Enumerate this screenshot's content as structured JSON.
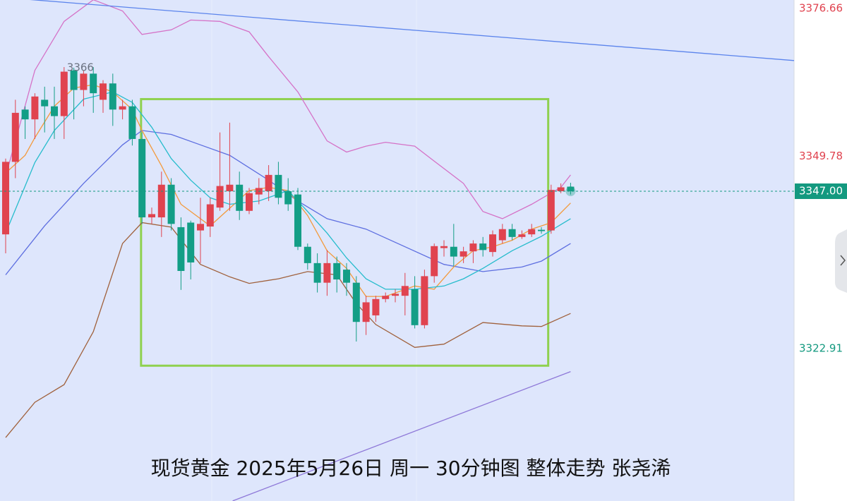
{
  "chart_data": {
    "type": "candlestick",
    "title": "现货黄金  2025年5月26日 周一 30分钟图 整体走势  张尧浠",
    "ylim": [
      3299.59,
      3376.27
    ],
    "xlim": [
      -0.58,
      80.94
    ],
    "up_color": "#e0434f",
    "down_color": "#139e86",
    "open": [
      3340.4,
      3351.5,
      3359.5,
      3358,
      3361,
      3360,
      3358.5,
      3365.5,
      3362.5,
      3365,
      3361,
      3363.5,
      3359.5,
      3360,
      3355,
      3343,
      3343,
      3348,
      3341.5,
      3342.2,
      3341,
      3341.6,
      3344.5,
      3347,
      3348,
      3344,
      3346.5,
      3347,
      3349.5,
      3347,
      3346.5,
      3338.5,
      3336,
      3333,
      3336,
      3335,
      3333,
      3327,
      3328,
      3330.5,
      3331,
      3331,
      3332,
      3326.5,
      3334,
      3338.3,
      3338.5,
      3337,
      3337.8,
      3339,
      3337.7,
      3339.5,
      3341.2,
      3340,
      3340.4,
      3341.1,
      3341,
      3347,
      3347.7
    ],
    "high": [
      3352,
      3361,
      3360,
      3362,
      3363,
      3363,
      3366,
      3365.91,
      3365.5,
      3366,
      3364,
      3365,
      3361,
      3361,
      3356,
      3344.5,
      3350,
      3349,
      3343,
      3342.5,
      3346,
      3346,
      3356,
      3357.5,
      3350,
      3347.5,
      3349,
      3351,
      3351.5,
      3349,
      3347.5,
      3339,
      3337.5,
      3338,
      3337,
      3336,
      3334,
      3331,
      3331,
      3331.5,
      3332,
      3334.5,
      3334,
      3335,
      3339,
      3339.5,
      3342,
      3338.5,
      3339.5,
      3340,
      3341,
      3342,
      3342,
      3341,
      3342,
      3341.5,
      3348,
      3348.2,
      3348.3
    ],
    "low": [
      3337.5,
      3349,
      3355,
      3355,
      3356,
      3355,
      3355,
      3358,
      3360,
      3359,
      3359,
      3357,
      3358,
      3354,
      3342,
      3342,
      3340,
      3341,
      3331.9,
      3333.5,
      3336,
      3340,
      3344,
      3344,
      3342.6,
      3343.5,
      3345,
      3345.5,
      3345,
      3344,
      3338,
      3335,
      3331.5,
      3331,
      3331.5,
      3331,
      3324,
      3325,
      3327,
      3330,
      3330,
      3328,
      3326,
      3326,
      3333,
      3337,
      3335.5,
      3336,
      3336,
      3337,
      3337,
      3339,
      3339.5,
      3339.7,
      3340,
      3340.5,
      3340.5,
      3346.7,
      3346.5
    ],
    "close": [
      3351.5,
      3359,
      3358,
      3361.5,
      3360,
      3358.5,
      3365.3,
      3362.5,
      3365,
      3362,
      3363.5,
      3359.5,
      3360,
      3355,
      3343,
      3343.5,
      3348,
      3342,
      3334.8,
      3336.1,
      3342,
      3345,
      3347.8,
      3348,
      3344,
      3346.7,
      3347.5,
      3349.5,
      3346,
      3345,
      3338.5,
      3336,
      3333,
      3336,
      3333.5,
      3333,
      3327,
      3330,
      3330.5,
      3331,
      3331.3,
      3332.5,
      3326.5,
      3334,
      3338.6,
      3338.6,
      3337,
      3337.8,
      3339,
      3338,
      3340.4,
      3341.2,
      3340,
      3340.4,
      3341.2,
      3340.9,
      3347.2,
      3347.6,
      3347
    ],
    "lines": [
      {
        "color": "#d572c7",
        "x": [
          0,
          3,
          6,
          9,
          12,
          14,
          17,
          19,
          22,
          25,
          27,
          30,
          33,
          35,
          37,
          39,
          42,
          44,
          47,
          49,
          51,
          54,
          57,
          58
        ],
        "values": [
          3349.3,
          3365.5,
          3373,
          3376.3,
          3374.6,
          3371,
          3371.7,
          3373.2,
          3373,
          3371.4,
          3367.6,
          3362.2,
          3354.7,
          3353,
          3353.9,
          3354.5,
          3353.9,
          3351.6,
          3348.2,
          3343.9,
          3342.8,
          3345,
          3347.6,
          3349.5
        ]
      },
      {
        "color": "#5d6ee0",
        "x": [
          0,
          4,
          8,
          12,
          14,
          17,
          20,
          23,
          27,
          30,
          33,
          37,
          41,
          45,
          49,
          53,
          55,
          58
        ],
        "values": [
          3334.2,
          3341.7,
          3348.2,
          3354.1,
          3356.3,
          3355.7,
          3354.1,
          3352.5,
          3348.7,
          3345.5,
          3342.8,
          3341.2,
          3338.5,
          3335.8,
          3334.7,
          3335.4,
          3336.3,
          3339
        ]
      },
      {
        "color": "#a0613c",
        "x": [
          0,
          3,
          6,
          9,
          12,
          14,
          17,
          20,
          23,
          25,
          28,
          31,
          34,
          36,
          38,
          42,
          45,
          49,
          53,
          55,
          58
        ],
        "values": [
          3309.3,
          3314.7,
          3317.4,
          3325.5,
          3339,
          3342.2,
          3341.5,
          3335.8,
          3333.9,
          3332.9,
          3333.6,
          3334.7,
          3334.2,
          3329.8,
          3326.6,
          3323.1,
          3323.6,
          3326.9,
          3326.4,
          3326.3,
          3328.3
        ]
      },
      {
        "color": "#f39a3c",
        "x": [
          0,
          2,
          3,
          5,
          7,
          9,
          11,
          13,
          14,
          16,
          18,
          21,
          23,
          25,
          27,
          29,
          31,
          33,
          35,
          37,
          39,
          42,
          44,
          46,
          48,
          50,
          52,
          54,
          56,
          58
        ],
        "values": [
          3349.8,
          3352.5,
          3355.2,
          3360,
          3362.8,
          3363.3,
          3362.2,
          3359.5,
          3356.3,
          3350.9,
          3345,
          3341.7,
          3344.4,
          3347.1,
          3347.6,
          3347.1,
          3343.3,
          3337.9,
          3335.2,
          3330.9,
          3330.9,
          3332.5,
          3332,
          3335.4,
          3337.9,
          3338.5,
          3339.5,
          3341.2,
          3342.2,
          3345.2
        ]
      },
      {
        "color": "#26bccc",
        "x": [
          0,
          3,
          5,
          8,
          11,
          13,
          15,
          17,
          19,
          21,
          23,
          26,
          29,
          31,
          33,
          35,
          37,
          39,
          42,
          45,
          47,
          49,
          52,
          55,
          58
        ],
        "values": [
          3340.6,
          3351.4,
          3356.3,
          3361.1,
          3362.2,
          3360.6,
          3356.8,
          3352,
          3348.7,
          3346,
          3345,
          3345.5,
          3347.1,
          3343.9,
          3340.6,
          3336.8,
          3333.6,
          3332,
          3332,
          3332.5,
          3333.6,
          3335.2,
          3337.9,
          3340.1,
          3342.8
        ]
      },
      {
        "color": "#5b84ec",
        "x": [
          -0.58,
          80.94
        ],
        "values": [
          3376.7,
          3367
        ]
      },
      {
        "color": "#8e78d8",
        "x": [
          23.3,
          58
        ],
        "values": [
          3299.6,
          3319.4
        ]
      }
    ],
    "box": {
      "color": "#8fd14f",
      "x": [
        13.9,
        55.7
      ],
      "y": [
        3320.3,
        3361.1
      ]
    },
    "price_labels": [
      {
        "value": 3376.66,
        "color": "#e0434f"
      },
      {
        "value": 3349.78,
        "color": "#e0434f"
      },
      {
        "value": 3347,
        "label": "3347.00",
        "color": "#ffffff",
        "background": "#13997f"
      },
      {
        "value": 3322.91,
        "color": "#13997f"
      }
    ]
  }
}
